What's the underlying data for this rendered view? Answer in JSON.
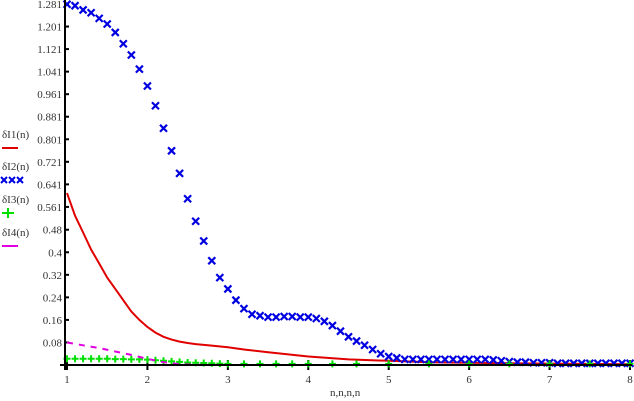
{
  "chart_data": {
    "type": "line",
    "title": "",
    "xlabel": "n,n,n,n",
    "ylabel": "",
    "xlim": [
      1,
      8
    ],
    "ylim": [
      0,
      1.281
    ],
    "grid": false,
    "legend_position": "left",
    "x_ticks": [
      "1",
      "2",
      "3",
      "4",
      "5",
      "6",
      "7",
      "8"
    ],
    "y_ticks": [
      "0.08",
      "0.16",
      "0.24",
      "0.32",
      "0.4",
      "0.48",
      "0.561",
      "0.641",
      "0.721",
      "0.801",
      "0.881",
      "0.961",
      "1.041",
      "1.121",
      "1.201",
      "1.281"
    ],
    "series": [
      {
        "name": "δI1(n)",
        "color": "#e00000",
        "style": "solid",
        "x": [
          1,
          1.1,
          1.2,
          1.3,
          1.4,
          1.5,
          1.6,
          1.7,
          1.8,
          1.9,
          2,
          2.1,
          2.2,
          2.3,
          2.4,
          2.5,
          2.6,
          2.8,
          3,
          3.2,
          3.5,
          4,
          4.5,
          5,
          5.5,
          6,
          6.5,
          7,
          7.5,
          8
        ],
        "values": [
          0.61,
          0.53,
          0.47,
          0.41,
          0.36,
          0.31,
          0.27,
          0.23,
          0.19,
          0.16,
          0.135,
          0.115,
          0.1,
          0.09,
          0.083,
          0.078,
          0.074,
          0.069,
          0.063,
          0.055,
          0.045,
          0.03,
          0.02,
          0.015,
          0.01,
          0.008,
          0.006,
          0.005,
          0.004,
          0.003
        ]
      },
      {
        "name": "δI2(n)",
        "color": "#0000e0",
        "style": "x-markers",
        "x": [
          1,
          1.1,
          1.2,
          1.3,
          1.4,
          1.5,
          1.6,
          1.7,
          1.8,
          1.9,
          2,
          2.1,
          2.2,
          2.3,
          2.4,
          2.5,
          2.6,
          2.7,
          2.8,
          2.9,
          3,
          3.1,
          3.2,
          3.3,
          3.4,
          3.5,
          3.6,
          3.7,
          3.8,
          3.9,
          4,
          4.1,
          4.2,
          4.3,
          4.4,
          4.5,
          4.6,
          4.7,
          4.8,
          4.9,
          5,
          5.1,
          5.2,
          5.3,
          5.4,
          5.5,
          5.6,
          5.7,
          5.8,
          5.9,
          6,
          6.1,
          6.2,
          6.3,
          6.4,
          6.5,
          6.6,
          6.7,
          6.8,
          6.9,
          7,
          7.1,
          7.2,
          7.3,
          7.4,
          7.5,
          7.6,
          7.7,
          7.8,
          7.9,
          8
        ],
        "values": [
          1.28,
          1.275,
          1.26,
          1.25,
          1.23,
          1.21,
          1.18,
          1.14,
          1.1,
          1.05,
          0.99,
          0.92,
          0.84,
          0.76,
          0.68,
          0.59,
          0.51,
          0.44,
          0.37,
          0.31,
          0.27,
          0.23,
          0.2,
          0.18,
          0.175,
          0.17,
          0.17,
          0.172,
          0.172,
          0.17,
          0.17,
          0.165,
          0.155,
          0.14,
          0.12,
          0.1,
          0.085,
          0.07,
          0.055,
          0.04,
          0.03,
          0.025,
          0.02,
          0.02,
          0.02,
          0.02,
          0.02,
          0.02,
          0.02,
          0.02,
          0.02,
          0.02,
          0.02,
          0.018,
          0.015,
          0.012,
          0.01,
          0.01,
          0.008,
          0.008,
          0.008,
          0.006,
          0.006,
          0.006,
          0.006,
          0.006,
          0.006,
          0.006,
          0.006,
          0.006,
          0.006
        ]
      },
      {
        "name": "δI3(n)",
        "color": "#00e000",
        "style": "plus-markers",
        "x": [
          1,
          1.1,
          1.2,
          1.3,
          1.4,
          1.5,
          1.6,
          1.7,
          1.8,
          1.9,
          2,
          2.1,
          2.2,
          2.3,
          2.4,
          2.5,
          2.6,
          2.7,
          2.8,
          2.9,
          3,
          3.2,
          3.4,
          3.6,
          3.8,
          4,
          4.3,
          4.6,
          5,
          5.5,
          6,
          6.5,
          7,
          7.5,
          8
        ],
        "values": [
          0.022,
          0.022,
          0.022,
          0.022,
          0.022,
          0.022,
          0.021,
          0.021,
          0.02,
          0.02,
          0.019,
          0.017,
          0.015,
          0.013,
          0.011,
          0.009,
          0.008,
          0.007,
          0.006,
          0.005,
          0.004,
          0.004,
          0.004,
          0.004,
          0.004,
          0.004,
          0.004,
          0.004,
          0.004,
          0.004,
          0.004,
          0.004,
          0.004,
          0.004,
          0.004
        ]
      },
      {
        "name": "δI4(n)",
        "color": "#e000e0",
        "style": "dashed",
        "x": [
          1,
          1.2,
          1.4,
          1.6,
          1.8,
          2,
          2.2,
          2.4,
          2.6,
          2.8,
          3,
          4,
          5,
          6,
          7,
          8
        ],
        "values": [
          0.08,
          0.07,
          0.06,
          0.048,
          0.036,
          0.022,
          0.01,
          0.003,
          0.001,
          0,
          0,
          0,
          0,
          0,
          0,
          0
        ]
      }
    ]
  }
}
